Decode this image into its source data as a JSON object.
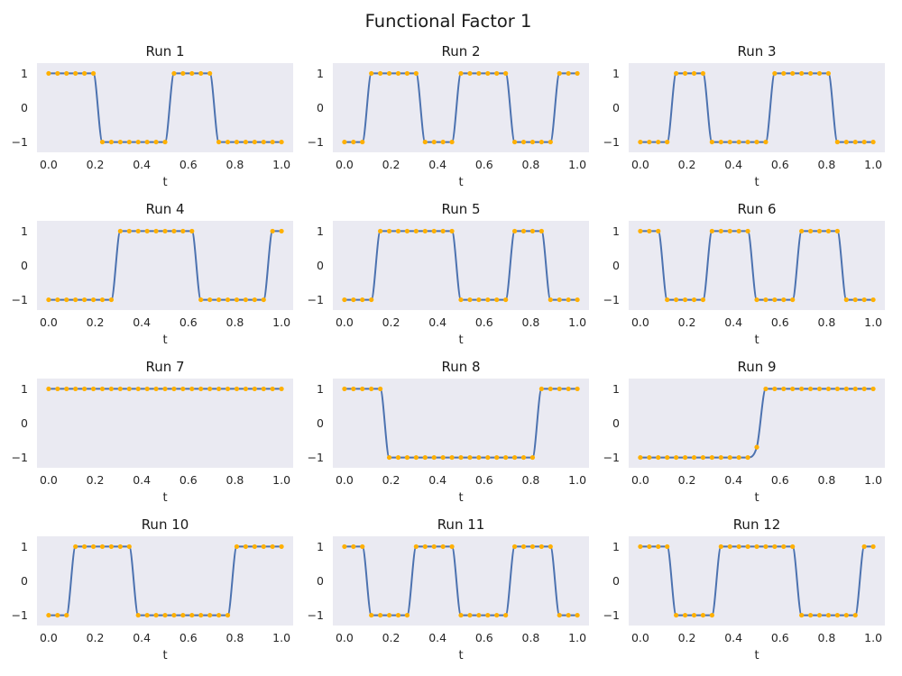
{
  "figure": {
    "title": "Functional Factor 1"
  },
  "chart_data": {
    "type": "line",
    "x_axis_label": "t",
    "x_ticks": [
      0.0,
      0.2,
      0.4,
      0.6,
      0.8,
      1.0
    ],
    "x_tick_labels": [
      "0.0",
      "0.2",
      "0.4",
      "0.6",
      "0.8",
      "1.0"
    ],
    "y_ticks": [
      -1,
      0,
      1
    ],
    "y_tick_labels": [
      "−1",
      "0",
      "1"
    ],
    "xlim": [
      -0.05,
      1.05
    ],
    "ylim": [
      -1.3,
      1.3
    ],
    "grid": false,
    "line_color": "#4c72b0",
    "point_color": "#ffb000",
    "background_color": "#eaeaf2",
    "t_points": [
      0.0,
      0.0385,
      0.0769,
      0.1154,
      0.1538,
      0.1923,
      0.2308,
      0.2692,
      0.3077,
      0.3462,
      0.3846,
      0.4231,
      0.4615,
      0.5,
      0.5385,
      0.5769,
      0.6154,
      0.6538,
      0.6923,
      0.7308,
      0.7692,
      0.8077,
      0.8462,
      0.8846,
      0.9231,
      0.9615,
      1.0
    ],
    "panels": [
      {
        "title": "Run 1",
        "values": [
          1,
          1,
          1,
          1,
          1,
          1,
          -1,
          -1,
          -1,
          -1,
          -1,
          -1,
          -1,
          -1,
          1,
          1,
          1,
          1,
          1,
          -1,
          -1,
          -1,
          -1,
          -1,
          -1,
          -1,
          -1
        ]
      },
      {
        "title": "Run 2",
        "values": [
          -1,
          -1,
          -1,
          1,
          1,
          1,
          1,
          1,
          1,
          -1,
          -1,
          -1,
          -1,
          1,
          1,
          1,
          1,
          1,
          1,
          -1,
          -1,
          -1,
          -1,
          -1,
          1,
          1,
          1
        ]
      },
      {
        "title": "Run 3",
        "values": [
          -1,
          -1,
          -1,
          -1,
          1,
          1,
          1,
          1,
          -1,
          -1,
          -1,
          -1,
          -1,
          -1,
          -1,
          1,
          1,
          1,
          1,
          1,
          1,
          1,
          -1,
          -1,
          -1,
          -1,
          -1
        ]
      },
      {
        "title": "Run 4",
        "values": [
          -1,
          -1,
          -1,
          -1,
          -1,
          -1,
          -1,
          -1,
          1,
          1,
          1,
          1,
          1,
          1,
          1,
          1,
          1,
          -1,
          -1,
          -1,
          -1,
          -1,
          -1,
          -1,
          -1,
          1,
          1
        ]
      },
      {
        "title": "Run 5",
        "values": [
          -1,
          -1,
          -1,
          -1,
          1,
          1,
          1,
          1,
          1,
          1,
          1,
          1,
          1,
          -1,
          -1,
          -1,
          -1,
          -1,
          -1,
          1,
          1,
          1,
          1,
          -1,
          -1,
          -1,
          -1
        ]
      },
      {
        "title": "Run 6",
        "values": [
          1,
          1,
          1,
          -1,
          -1,
          -1,
          -1,
          -1,
          1,
          1,
          1,
          1,
          1,
          -1,
          -1,
          -1,
          -1,
          -1,
          1,
          1,
          1,
          1,
          1,
          -1,
          -1,
          -1,
          -1
        ]
      },
      {
        "title": "Run 7",
        "values": [
          1,
          1,
          1,
          1,
          1,
          1,
          1,
          1,
          1,
          1,
          1,
          1,
          1,
          1,
          1,
          1,
          1,
          1,
          1,
          1,
          1,
          1,
          1,
          1,
          1,
          1,
          1
        ]
      },
      {
        "title": "Run 8",
        "values": [
          1,
          1,
          1,
          1,
          1,
          -1,
          -1,
          -1,
          -1,
          -1,
          -1,
          -1,
          -1,
          -1,
          -1,
          -1,
          -1,
          -1,
          -1,
          -1,
          -1,
          -1,
          1,
          1,
          1,
          1,
          1
        ]
      },
      {
        "title": "Run 9",
        "values": [
          -1,
          -1,
          -1,
          -1,
          -1,
          -1,
          -1,
          -1,
          -1,
          -1,
          -1,
          -1,
          -1,
          -0.7,
          1,
          1,
          1,
          1,
          1,
          1,
          1,
          1,
          1,
          1,
          1,
          1,
          1
        ]
      },
      {
        "title": "Run 10",
        "values": [
          -1,
          -1,
          -1,
          1,
          1,
          1,
          1,
          1,
          1,
          1,
          -1,
          -1,
          -1,
          -1,
          -1,
          -1,
          -1,
          -1,
          -1,
          -1,
          -1,
          1,
          1,
          1,
          1,
          1,
          1
        ]
      },
      {
        "title": "Run 11",
        "values": [
          1,
          1,
          1,
          -1,
          -1,
          -1,
          -1,
          -1,
          1,
          1,
          1,
          1,
          1,
          -1,
          -1,
          -1,
          -1,
          -1,
          -1,
          1,
          1,
          1,
          1,
          1,
          -1,
          -1,
          -1
        ]
      },
      {
        "title": "Run 12",
        "values": [
          1,
          1,
          1,
          1,
          -1,
          -1,
          -1,
          -1,
          -1,
          1,
          1,
          1,
          1,
          1,
          1,
          1,
          1,
          1,
          -1,
          -1,
          -1,
          -1,
          -1,
          -1,
          -1,
          1,
          1
        ]
      }
    ]
  }
}
